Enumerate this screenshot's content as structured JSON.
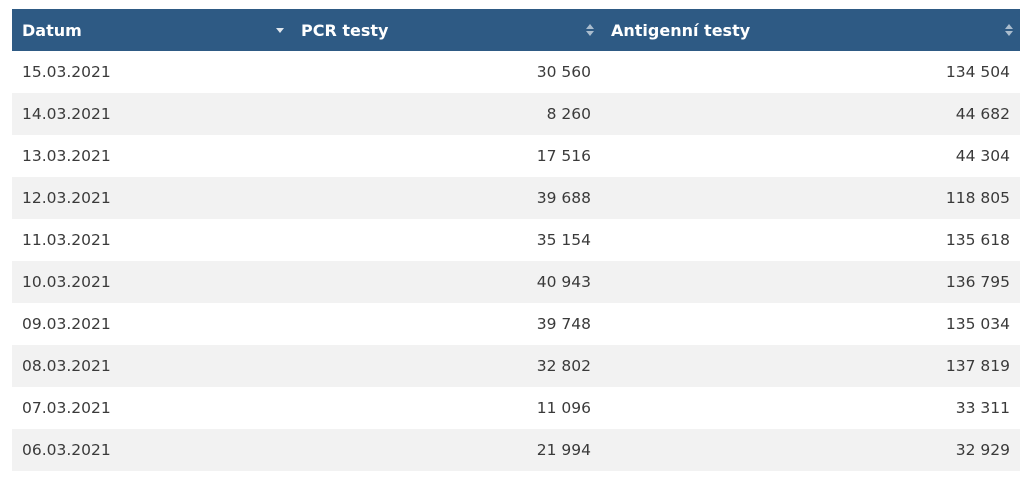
{
  "table": {
    "header_color": "#2e5a84",
    "columns": [
      {
        "label": "Datum",
        "sort_icon": "sort-desc-icon"
      },
      {
        "label": "PCR testy",
        "sort_icon": "sort-both-icon"
      },
      {
        "label": "Antigenní testy",
        "sort_icon": "sort-both-icon"
      }
    ],
    "rows": [
      {
        "date": "15.03.2021",
        "pcr": "30 560",
        "antigen": "134 504"
      },
      {
        "date": "14.03.2021",
        "pcr": "8 260",
        "antigen": "44 682"
      },
      {
        "date": "13.03.2021",
        "pcr": "17 516",
        "antigen": "44 304"
      },
      {
        "date": "12.03.2021",
        "pcr": "39 688",
        "antigen": "118 805"
      },
      {
        "date": "11.03.2021",
        "pcr": "35 154",
        "antigen": "135 618"
      },
      {
        "date": "10.03.2021",
        "pcr": "40 943",
        "antigen": "136 795"
      },
      {
        "date": "09.03.2021",
        "pcr": "39 748",
        "antigen": "135 034"
      },
      {
        "date": "08.03.2021",
        "pcr": "32 802",
        "antigen": "137 819"
      },
      {
        "date": "07.03.2021",
        "pcr": "11 096",
        "antigen": "33 311"
      },
      {
        "date": "06.03.2021",
        "pcr": "21 994",
        "antigen": "32 929"
      }
    ]
  }
}
